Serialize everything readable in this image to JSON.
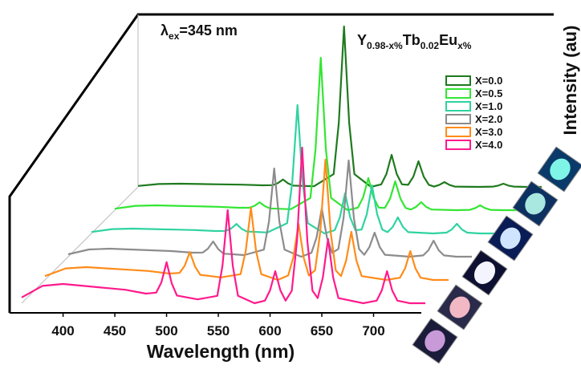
{
  "chart_data": {
    "type": "waterfall",
    "x_label": "Wavelength (nm)",
    "y_label": "Intensity (au)",
    "excitation": {
      "symbol": "λ",
      "subscript": "ex",
      "text": "=345 nm"
    },
    "formula": [
      {
        "text": "Y"
      },
      {
        "sub": "0.98-x%"
      },
      {
        "text": "Tb"
      },
      {
        "sub": "0.02"
      },
      {
        "text": "Eu"
      },
      {
        "sub": "x%"
      }
    ],
    "xlim": [
      360,
      750
    ],
    "xticks": [
      400,
      450,
      500,
      550,
      600,
      650,
      700
    ],
    "ylim": [
      0,
      100
    ],
    "x": [
      360,
      380,
      400,
      420,
      440,
      460,
      480,
      490,
      495,
      500,
      505,
      510,
      530,
      549,
      554,
      559,
      564,
      569,
      585,
      595,
      600,
      605,
      610,
      615,
      621,
      626,
      631,
      636,
      641,
      646,
      651,
      656,
      661,
      666,
      690,
      703,
      708,
      713,
      718,
      723,
      735,
      750
    ],
    "series": [
      {
        "name": "X=0.0",
        "color": "#1f7a1f",
        "values": [
          0.6,
          1.8,
          2,
          1.8,
          1.6,
          1.4,
          1,
          1.1,
          2.3,
          4.6,
          2.2,
          0.8,
          0.4,
          8,
          40,
          100,
          40,
          8,
          0,
          1.6,
          8,
          20,
          8,
          1.6,
          1.3,
          6.4,
          16,
          6.4,
          1.3,
          0.2,
          1.2,
          3,
          1.2,
          0.2,
          0,
          0.2,
          0.8,
          2,
          0.8,
          0.2,
          0,
          0
        ]
      },
      {
        "name": "X=0.5",
        "color": "#33e633",
        "values": [
          0.9,
          2.7,
          3,
          2.7,
          2.4,
          2.1,
          1.5,
          1.5,
          2.7,
          4.9,
          2.5,
          1.1,
          0.6,
          7.6,
          38,
          95,
          38,
          7.6,
          0,
          1.6,
          8,
          20,
          8,
          1.6,
          1.4,
          7.2,
          18,
          7.2,
          1.4,
          0.4,
          2,
          5,
          2,
          0.4,
          0,
          0.2,
          1.2,
          3,
          1.2,
          0.2,
          0,
          0
        ]
      },
      {
        "name": "X=1.0",
        "color": "#2fd3a0",
        "values": [
          0.9,
          2.7,
          3,
          2.7,
          2.4,
          2.1,
          1.5,
          1.6,
          3.1,
          5.9,
          2.9,
          1.2,
          0.6,
          6.4,
          32,
          80,
          32,
          6.4,
          0,
          2,
          10,
          25,
          10,
          2,
          2.4,
          12,
          30,
          12,
          2.4,
          0.8,
          4,
          10,
          4,
          0.8,
          0,
          0.5,
          2.4,
          6,
          2.4,
          0.5,
          0,
          0
        ]
      },
      {
        "name": "X=2.0",
        "color": "#8c8c8c",
        "values": [
          1.5,
          4.5,
          5,
          4.5,
          4,
          3.5,
          2.5,
          2.6,
          5,
          9.5,
          4.7,
          1.9,
          1,
          4.4,
          22,
          55,
          22,
          4.4,
          0,
          2.4,
          12,
          30,
          12,
          2.4,
          4.8,
          24,
          60,
          24,
          4.8,
          1.2,
          6,
          15,
          6,
          1.2,
          0,
          0.8,
          4,
          10,
          4,
          0.8,
          0,
          0
        ]
      },
      {
        "name": "X=3.0",
        "color": "#ff8c1a",
        "values": [
          2.4,
          7.2,
          8,
          7.2,
          6.4,
          5.6,
          4,
          4.4,
          8.8,
          17.4,
          8.4,
          3.2,
          1.6,
          3.6,
          18,
          45,
          18,
          3.6,
          0,
          2.8,
          14,
          35,
          14,
          2.8,
          6,
          30,
          75,
          30,
          6,
          2.4,
          12,
          30,
          12,
          2.4,
          0,
          1.4,
          7.2,
          18,
          7.2,
          1.4,
          0,
          0
        ]
      },
      {
        "name": "X=4.0",
        "color": "#ff1a8c",
        "values": [
          3.6,
          10.8,
          12,
          10.8,
          9.6,
          8.4,
          6,
          6.6,
          13,
          25.6,
          12.4,
          4.8,
          2.4,
          4.6,
          23.2,
          58,
          23.2,
          4.6,
          0,
          1.6,
          8,
          20,
          8,
          1.6,
          7.8,
          38.8,
          97,
          38.8,
          7.8,
          3.2,
          16,
          40,
          16,
          3.2,
          0,
          1.6,
          8,
          20,
          8,
          1.6,
          0,
          0
        ]
      }
    ]
  }
}
